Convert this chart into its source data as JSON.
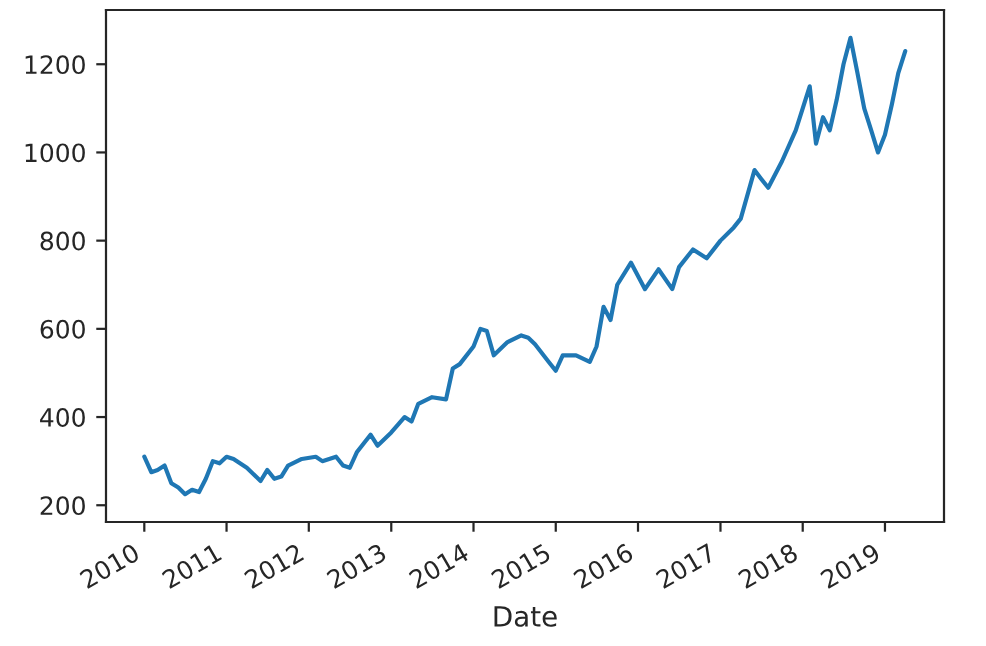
{
  "chart_data": {
    "type": "line",
    "xlabel": "Date",
    "x": [
      "2010-01",
      "2010-02",
      "2010-03",
      "2010-04",
      "2010-05",
      "2010-06",
      "2010-07",
      "2010-08",
      "2010-09",
      "2010-10",
      "2010-11",
      "2010-12",
      "2011-01",
      "2011-02",
      "2011-04",
      "2011-06",
      "2011-07",
      "2011-08",
      "2011-09",
      "2011-10",
      "2011-12",
      "2012-02",
      "2012-03",
      "2012-05",
      "2012-06",
      "2012-07",
      "2012-08",
      "2012-10",
      "2012-11",
      "2013-01",
      "2013-03",
      "2013-04",
      "2013-05",
      "2013-07",
      "2013-09",
      "2013-10",
      "2013-11",
      "2014-01",
      "2014-02",
      "2014-03",
      "2014-04",
      "2014-06",
      "2014-08",
      "2014-09",
      "2014-10",
      "2014-12",
      "2015-01",
      "2015-02",
      "2015-04",
      "2015-06",
      "2015-07",
      "2015-08",
      "2015-09",
      "2015-10",
      "2015-12",
      "2016-01",
      "2016-02",
      "2016-04",
      "2016-06",
      "2016-07",
      "2016-09",
      "2016-11",
      "2017-01",
      "2017-03",
      "2017-04",
      "2017-06",
      "2017-07",
      "2017-08",
      "2017-10",
      "2017-12",
      "2018-01",
      "2018-02",
      "2018-03",
      "2018-04",
      "2018-05",
      "2018-06",
      "2018-07",
      "2018-08",
      "2018-09",
      "2018-10",
      "2018-11",
      "2018-12",
      "2019-01",
      "2019-02",
      "2019-03",
      "2019-04"
    ],
    "series": [
      {
        "color": "#1f77b4",
        "values": [
          310,
          275,
          280,
          290,
          250,
          240,
          225,
          235,
          230,
          260,
          300,
          295,
          310,
          305,
          285,
          255,
          280,
          260,
          265,
          290,
          305,
          310,
          300,
          310,
          290,
          285,
          320,
          360,
          335,
          365,
          400,
          390,
          430,
          445,
          440,
          510,
          520,
          560,
          600,
          595,
          540,
          570,
          585,
          580,
          565,
          525,
          505,
          540,
          540,
          525,
          560,
          650,
          620,
          700,
          750,
          720,
          690,
          735,
          690,
          740,
          780,
          760,
          800,
          830,
          850,
          960,
          940,
          920,
          980,
          1050,
          1100,
          1150,
          1020,
          1080,
          1050,
          1120,
          1200,
          1260,
          1180,
          1100,
          1050,
          1000,
          1040,
          1110,
          1180,
          1230
        ]
      }
    ],
    "xlim": [
      "2009-07-15",
      "2019-09-20"
    ],
    "xticks": [
      {
        "value": "2010-01-01",
        "label": "2010"
      },
      {
        "value": "2011-01-01",
        "label": "2011"
      },
      {
        "value": "2012-01-01",
        "label": "2012"
      },
      {
        "value": "2013-01-01",
        "label": "2013"
      },
      {
        "value": "2014-01-01",
        "label": "2014"
      },
      {
        "value": "2015-01-01",
        "label": "2015"
      },
      {
        "value": "2016-01-01",
        "label": "2016"
      },
      {
        "value": "2017-01-01",
        "label": "2017"
      },
      {
        "value": "2018-01-01",
        "label": "2018"
      },
      {
        "value": "2019-01-01",
        "label": "2019"
      }
    ],
    "ylim": [
      162,
      1323
    ],
    "yticks": [
      200,
      400,
      600,
      800,
      1000,
      1200
    ],
    "grid": false,
    "legend": false
  }
}
